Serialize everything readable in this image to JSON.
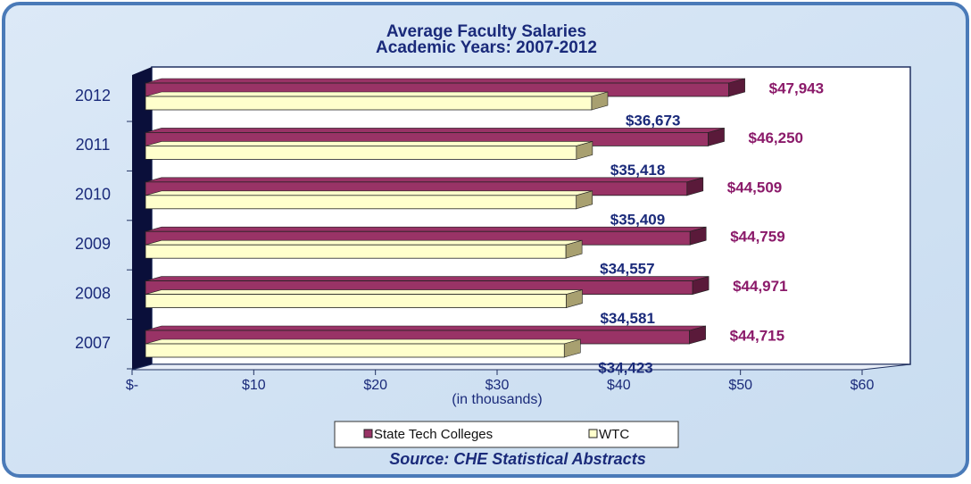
{
  "chart_data": {
    "type": "bar",
    "orientation": "horizontal",
    "title": "Average Faculty Salaries",
    "subtitle": "Academic Years: 2007-2012",
    "x_label": "(in thousands)",
    "source": "Source: CHE Statistical Abstracts",
    "categories": [
      "2012",
      "2011",
      "2010",
      "2009",
      "2008",
      "2007"
    ],
    "series": [
      {
        "name": "State Tech Colleges",
        "color": "#993366",
        "values": [
          47.943,
          46.25,
          44.509,
          44.759,
          44.971,
          44.715
        ],
        "value_labels": [
          "$47,943",
          "$46,250",
          "$44,509",
          "$44,759",
          "$44,971",
          "$44,715"
        ]
      },
      {
        "name": "WTC",
        "color": "#ffffcc",
        "values": [
          36.673,
          35.418,
          35.409,
          34.557,
          34.581,
          34.423
        ],
        "value_labels": [
          "$36,673",
          "$35,418",
          "$35,409",
          "$34,557",
          "$34,581",
          "$34,423"
        ]
      }
    ],
    "xlim": [
      0,
      60
    ],
    "xticks": [
      {
        "value": 0,
        "label": "$-"
      },
      {
        "value": 10,
        "label": "$10"
      },
      {
        "value": 20,
        "label": "$20"
      },
      {
        "value": 30,
        "label": "$30"
      },
      {
        "value": 40,
        "label": "$40"
      },
      {
        "value": 50,
        "label": "$50"
      },
      {
        "value": 60,
        "label": "$60"
      }
    ],
    "legend": "bottom"
  }
}
